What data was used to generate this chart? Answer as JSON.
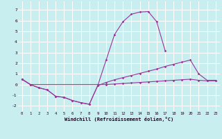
{
  "xlabel": "Windchill (Refroidissement éolien,°C)",
  "background_color": "#c8eef0",
  "grid_color": "#ffffff",
  "line_color": "#993399",
  "xlim": [
    -0.5,
    23.5
  ],
  "ylim": [
    -2.5,
    7.8
  ],
  "xticks": [
    0,
    1,
    2,
    3,
    4,
    5,
    6,
    7,
    8,
    9,
    10,
    11,
    12,
    13,
    14,
    15,
    16,
    17,
    18,
    19,
    20,
    21,
    22,
    23
  ],
  "yticks": [
    -2,
    -1,
    0,
    1,
    2,
    3,
    4,
    5,
    6,
    7
  ],
  "line1_x": [
    0,
    1,
    2,
    3,
    4,
    5,
    6,
    7,
    8,
    9,
    10,
    11,
    12,
    13,
    14,
    15,
    16,
    17
  ],
  "line1_y": [
    0.5,
    0.0,
    -0.3,
    -0.5,
    -1.1,
    -1.2,
    -1.5,
    -1.7,
    -1.85,
    -0.1,
    2.3,
    4.7,
    5.9,
    6.6,
    6.8,
    6.85,
    5.9,
    3.2
  ],
  "line2_x": [
    0,
    1,
    2,
    3,
    4,
    5,
    6,
    7,
    8,
    9,
    10,
    11,
    12,
    13,
    14,
    15,
    16,
    17,
    18,
    19,
    20,
    21,
    22,
    23
  ],
  "line2_y": [
    0.5,
    0.0,
    -0.3,
    -0.5,
    -1.1,
    -1.2,
    -1.5,
    -1.7,
    -1.85,
    -0.1,
    0.2,
    0.45,
    0.65,
    0.85,
    1.05,
    1.25,
    1.45,
    1.7,
    1.9,
    2.1,
    2.3,
    1.0,
    0.4,
    0.4
  ],
  "line3_x": [
    0,
    1,
    10,
    11,
    12,
    13,
    14,
    15,
    16,
    17,
    18,
    19,
    20,
    21,
    22,
    23
  ],
  "line3_y": [
    0.5,
    0.0,
    0.0,
    0.05,
    0.1,
    0.15,
    0.2,
    0.25,
    0.3,
    0.35,
    0.4,
    0.45,
    0.5,
    0.4,
    0.35,
    0.35
  ]
}
